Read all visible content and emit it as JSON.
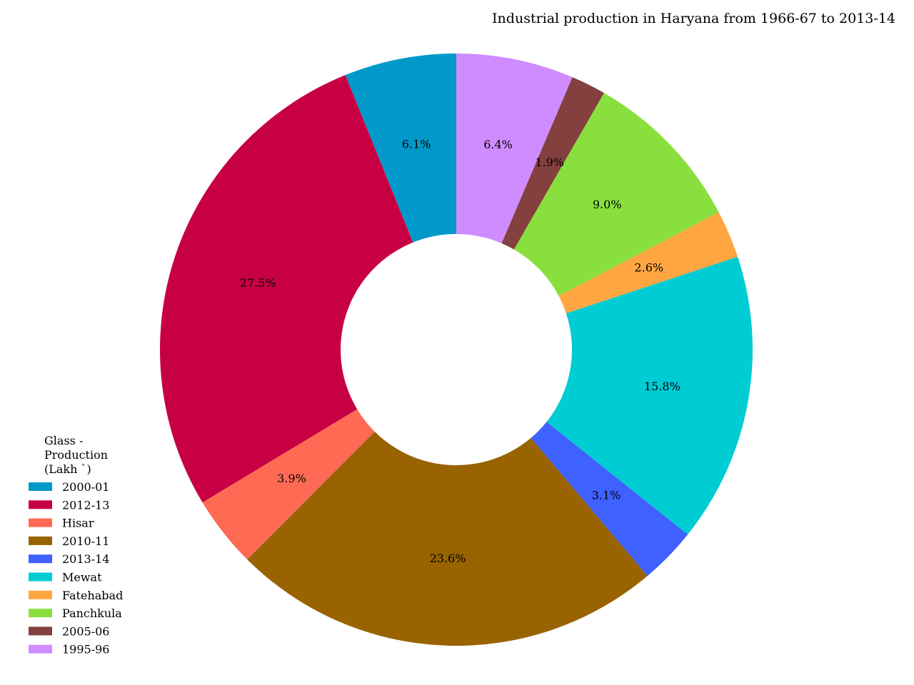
{
  "chart_data": {
    "type": "pie",
    "title": "Industrial production in Haryana from 1966-67 to 2013-14",
    "legend_title": [
      "Glass -",
      "Production",
      "(Lakh `)"
    ],
    "legend_position": "bottom-left",
    "donut": true,
    "start_angle_deg": 90,
    "direction": "counterclockwise",
    "slices": [
      {
        "label": "2000-01",
        "percent": 6.1,
        "pct_text": "6.1%",
        "color": "#0099c9"
      },
      {
        "label": "2012-13",
        "percent": 27.5,
        "pct_text": "27.5%",
        "color": "#c70043"
      },
      {
        "label": "Hisar",
        "percent": 3.9,
        "pct_text": "3.9%",
        "color": "#ff6a55"
      },
      {
        "label": "2010-11",
        "percent": 23.6,
        "pct_text": "23.6%",
        "color": "#986300"
      },
      {
        "label": "2013-14",
        "percent": 3.1,
        "pct_text": "3.1%",
        "color": "#3e61ff"
      },
      {
        "label": "Mewat",
        "percent": 15.8,
        "pct_text": "15.8%",
        "color": "#00ccd3"
      },
      {
        "label": "Fatehabad",
        "percent": 2.6,
        "pct_text": "2.6%",
        "color": "#ffa642"
      },
      {
        "label": "Panchkula",
        "percent": 9.0,
        "pct_text": "9.0%",
        "color": "#89df3e"
      },
      {
        "label": "2005-06",
        "percent": 1.9,
        "pct_text": "1.9%",
        "color": "#83403f"
      },
      {
        "label": "1995-96",
        "percent": 6.4,
        "pct_text": "6.4%",
        "color": "#cf8cff"
      }
    ]
  }
}
